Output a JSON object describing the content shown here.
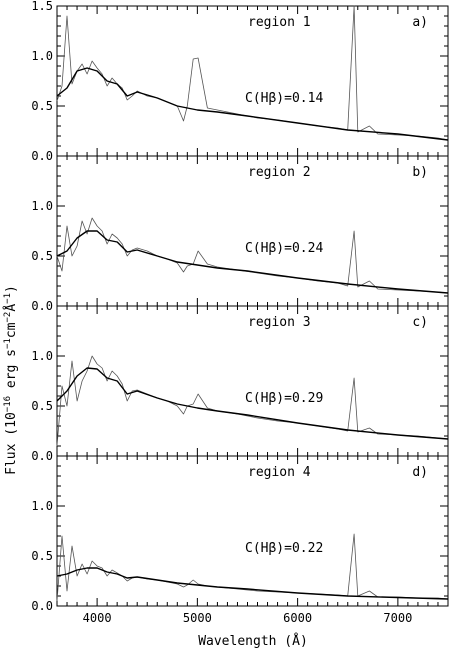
{
  "chart_data": {
    "type": "line",
    "xlabel": "Wavelength (Å)",
    "ylabel_parts": {
      "pre": "Flux (10",
      "exp1": "−16",
      "mid": " erg s",
      "exp2": "−1",
      "cm": "cm",
      "exp3": "−2",
      "ang": "Å",
      "exp4": "−1",
      "post": ")"
    },
    "xlim": [
      3600,
      7500
    ],
    "ylim": [
      0,
      1.5
    ],
    "xticks": [
      4000,
      5000,
      6000,
      7000
    ],
    "xtick_labels": [
      "4000",
      "5000",
      "6000",
      "7000"
    ],
    "yticks": [
      0.0,
      0.5,
      1.0,
      1.5
    ],
    "ytick_labels": [
      "0.0",
      "0.5",
      "1.0",
      "1.5"
    ],
    "series_style": {
      "observed": "#555555",
      "model": "#000000"
    },
    "panels": [
      {
        "region": "region 1",
        "letter": "a)",
        "ext_label": "C(Hβ)=0.14",
        "ext_value": 0.14,
        "series": [
          {
            "role": "observed",
            "x": [
              3600,
              3650,
              3700,
              3750,
              3800,
              3850,
              3900,
              3950,
              4000,
              4050,
              4100,
              4150,
              4200,
              4250,
              4300,
              4350,
              4400,
              4500,
              4600,
              4700,
              4800,
              4850,
              4862,
              4900,
              4959,
              5007,
              5100,
              5200,
              5400,
              5600,
              5800,
              6000,
              6200,
              6400,
              6500,
              6563,
              6600,
              6716,
              6800,
              7000,
              7200,
              7400,
              7500
            ],
            "y": [
              0.55,
              0.7,
              1.4,
              0.72,
              0.85,
              0.92,
              0.82,
              0.95,
              0.88,
              0.82,
              0.7,
              0.78,
              0.72,
              0.68,
              0.56,
              0.6,
              0.65,
              0.6,
              0.58,
              0.54,
              0.5,
              0.38,
              0.35,
              0.5,
              0.97,
              0.98,
              0.48,
              0.46,
              0.42,
              0.38,
              0.36,
              0.33,
              0.3,
              0.28,
              0.26,
              1.5,
              0.24,
              0.3,
              0.22,
              0.21,
              0.2,
              0.18,
              0.16
            ]
          },
          {
            "role": "model",
            "x": [
              3600,
              3700,
              3800,
              3900,
              4000,
              4100,
              4200,
              4300,
              4400,
              4600,
              4800,
              5000,
              5200,
              5500,
              6000,
              6500,
              7000,
              7500
            ],
            "y": [
              0.6,
              0.68,
              0.85,
              0.88,
              0.85,
              0.75,
              0.72,
              0.6,
              0.64,
              0.58,
              0.5,
              0.46,
              0.44,
              0.4,
              0.33,
              0.26,
              0.22,
              0.16
            ]
          }
        ]
      },
      {
        "region": "region 2",
        "letter": "b)",
        "ext_label": "C(Hβ)=0.24",
        "ext_value": 0.24,
        "series": [
          {
            "role": "observed",
            "x": [
              3600,
              3650,
              3700,
              3750,
              3800,
              3850,
              3900,
              3950,
              4000,
              4050,
              4100,
              4150,
              4200,
              4250,
              4300,
              4350,
              4400,
              4500,
              4600,
              4700,
              4800,
              4862,
              4900,
              4959,
              5007,
              5100,
              5200,
              5400,
              5600,
              5800,
              6000,
              6200,
              6400,
              6500,
              6563,
              6600,
              6716,
              6800,
              7000,
              7200,
              7400,
              7500
            ],
            "y": [
              0.5,
              0.35,
              0.8,
              0.5,
              0.6,
              0.85,
              0.72,
              0.88,
              0.8,
              0.75,
              0.62,
              0.72,
              0.68,
              0.62,
              0.5,
              0.56,
              0.58,
              0.55,
              0.5,
              0.47,
              0.43,
              0.34,
              0.4,
              0.42,
              0.55,
              0.42,
              0.39,
              0.36,
              0.33,
              0.3,
              0.28,
              0.25,
              0.23,
              0.2,
              0.75,
              0.19,
              0.25,
              0.17,
              0.16,
              0.15,
              0.14,
              0.13
            ]
          },
          {
            "role": "model",
            "x": [
              3600,
              3700,
              3800,
              3900,
              4000,
              4100,
              4200,
              4300,
              4400,
              4600,
              4800,
              5000,
              5200,
              5500,
              6000,
              6500,
              7000,
              7500
            ],
            "y": [
              0.5,
              0.55,
              0.68,
              0.75,
              0.75,
              0.66,
              0.64,
              0.54,
              0.56,
              0.5,
              0.44,
              0.41,
              0.38,
              0.35,
              0.28,
              0.22,
              0.17,
              0.13
            ]
          }
        ]
      },
      {
        "region": "region 3",
        "letter": "c)",
        "ext_label": "C(Hβ)=0.29",
        "ext_value": 0.29,
        "series": [
          {
            "role": "observed",
            "x": [
              3600,
              3650,
              3700,
              3750,
              3800,
              3850,
              3900,
              3950,
              4000,
              4050,
              4100,
              4150,
              4200,
              4250,
              4300,
              4350,
              4400,
              4500,
              4600,
              4700,
              4800,
              4862,
              4900,
              4959,
              5007,
              5100,
              5200,
              5400,
              5600,
              5800,
              6000,
              6200,
              6400,
              6500,
              6563,
              6600,
              6716,
              6800,
              7000,
              7200,
              7400,
              7500
            ],
            "y": [
              0.1,
              0.7,
              0.5,
              0.95,
              0.55,
              0.75,
              0.85,
              1.0,
              0.92,
              0.88,
              0.75,
              0.85,
              0.8,
              0.72,
              0.55,
              0.65,
              0.66,
              0.62,
              0.58,
              0.55,
              0.5,
              0.42,
              0.5,
              0.52,
              0.62,
              0.48,
              0.45,
              0.42,
              0.38,
              0.35,
              0.33,
              0.3,
              0.27,
              0.25,
              0.78,
              0.24,
              0.28,
              0.22,
              0.21,
              0.2,
              0.18,
              0.17
            ]
          },
          {
            "role": "model",
            "x": [
              3600,
              3700,
              3800,
              3900,
              4000,
              4100,
              4200,
              4300,
              4400,
              4600,
              4800,
              5000,
              5200,
              5500,
              6000,
              6500,
              7000,
              7500
            ],
            "y": [
              0.55,
              0.65,
              0.8,
              0.88,
              0.87,
              0.78,
              0.75,
              0.62,
              0.65,
              0.58,
              0.52,
              0.48,
              0.45,
              0.41,
              0.33,
              0.26,
              0.21,
              0.17
            ]
          }
        ]
      },
      {
        "region": "region 4",
        "letter": "d)",
        "ext_label": "C(Hβ)=0.22",
        "ext_value": 0.22,
        "series": [
          {
            "role": "observed",
            "x": [
              3600,
              3650,
              3700,
              3750,
              3800,
              3850,
              3900,
              3950,
              4000,
              4050,
              4100,
              4150,
              4200,
              4250,
              4300,
              4350,
              4400,
              4500,
              4600,
              4700,
              4800,
              4862,
              4900,
              4959,
              5007,
              5100,
              5200,
              5400,
              5600,
              5800,
              6000,
              6200,
              6400,
              6500,
              6563,
              6600,
              6716,
              6800,
              7000,
              7200,
              7400,
              7500
            ],
            "y": [
              0.05,
              0.7,
              0.15,
              0.6,
              0.3,
              0.42,
              0.32,
              0.45,
              0.4,
              0.38,
              0.3,
              0.36,
              0.33,
              0.3,
              0.25,
              0.28,
              0.29,
              0.27,
              0.26,
              0.24,
              0.22,
              0.19,
              0.21,
              0.26,
              0.22,
              0.2,
              0.19,
              0.17,
              0.15,
              0.14,
              0.13,
              0.12,
              0.11,
              0.1,
              0.72,
              0.1,
              0.15,
              0.09,
              0.09,
              0.08,
              0.08,
              0.07
            ]
          },
          {
            "role": "model",
            "x": [
              3600,
              3700,
              3800,
              3900,
              4000,
              4100,
              4200,
              4300,
              4400,
              4600,
              4800,
              5000,
              5200,
              5500,
              6000,
              6500,
              7000,
              7500
            ],
            "y": [
              0.3,
              0.32,
              0.36,
              0.38,
              0.38,
              0.34,
              0.32,
              0.28,
              0.29,
              0.26,
              0.23,
              0.21,
              0.19,
              0.17,
              0.13,
              0.1,
              0.085,
              0.07
            ]
          }
        ]
      }
    ]
  }
}
